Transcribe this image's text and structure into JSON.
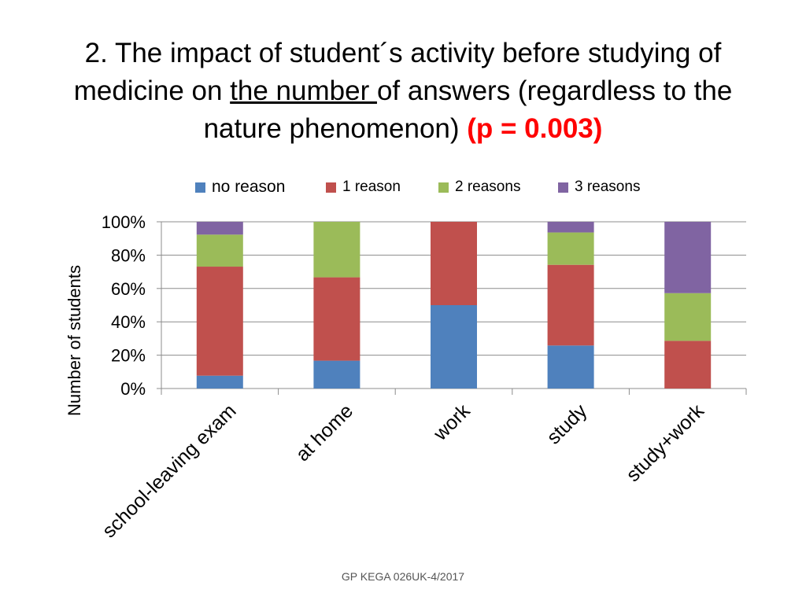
{
  "slide": {
    "title_part1": "2. The impact of student´s activity before studying of medicine on ",
    "title_underlined": "the number ",
    "title_part2": "of answers (regardless to the nature phenomenon) ",
    "title_pvalue": "(p = 0.003)",
    "footer": "GP KEGA 026UK-4/2017"
  },
  "chart_data": {
    "type": "bar",
    "stacked": true,
    "percent": true,
    "ylabel": "Number of students",
    "ylim": [
      0,
      100
    ],
    "yticks": [
      "0%",
      "20%",
      "40%",
      "60%",
      "80%",
      "100%"
    ],
    "ytick_values": [
      0,
      20,
      40,
      60,
      80,
      100
    ],
    "categories": [
      "school-leaving exam",
      "at home",
      "work",
      "study",
      "study+work"
    ],
    "series": [
      {
        "name": "no reason",
        "color": "#4f81bd",
        "values": [
          7.7,
          16.7,
          50,
          25.8,
          0
        ]
      },
      {
        "name": "1 reason",
        "color": "#c0504d",
        "values": [
          65.4,
          50,
          50,
          48.4,
          28.6
        ]
      },
      {
        "name": "2 reasons",
        "color": "#9bbb59",
        "values": [
          19.2,
          33.3,
          0,
          19.4,
          28.6
        ]
      },
      {
        "name": "3 reasons",
        "color": "#8064a2",
        "values": [
          7.7,
          0,
          0,
          6.4,
          42.8
        ]
      }
    ],
    "legend_position": "top",
    "grid": true
  }
}
